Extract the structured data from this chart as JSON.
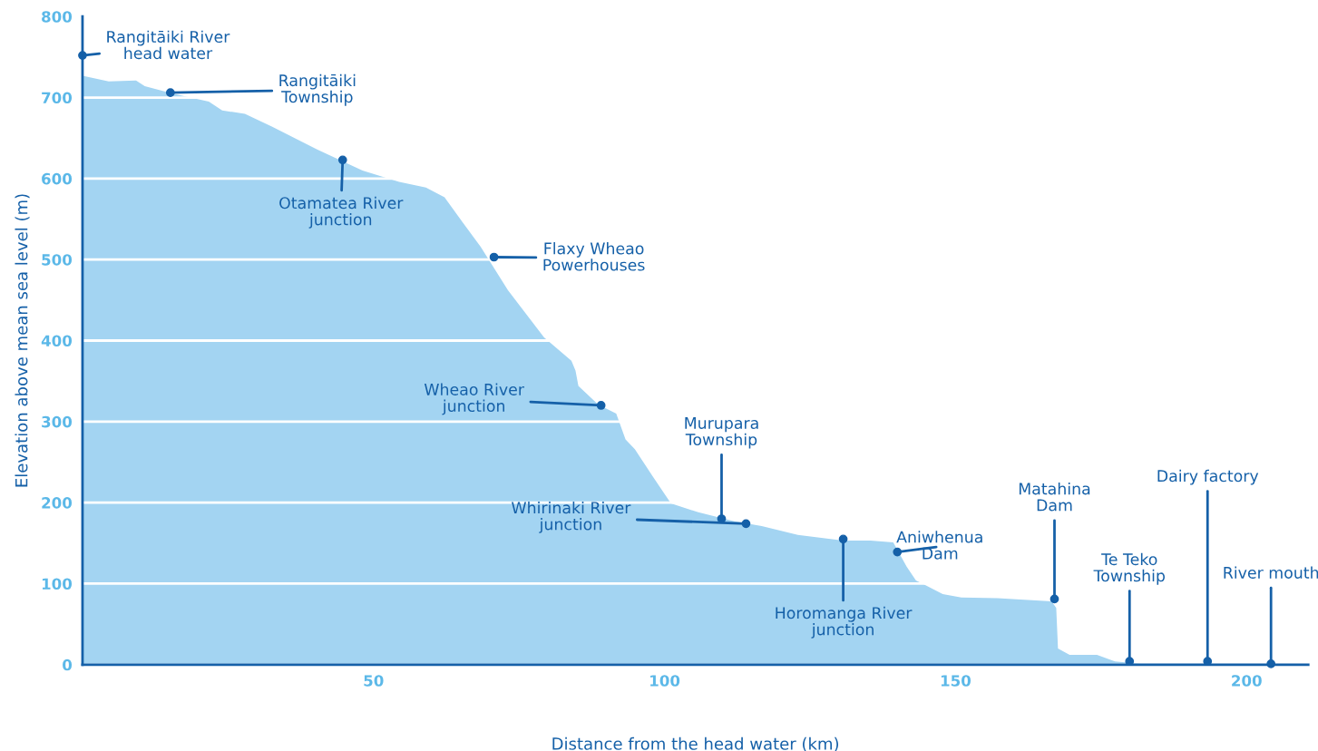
{
  "chart_data": {
    "type": "area",
    "xlabel": "Distance from the head water (km)",
    "ylabel": "Elevation above mean sea level (m)",
    "x": [
      0,
      4.5,
      9.2,
      10.7,
      15.4,
      21.7,
      24,
      27.9,
      32.6,
      40.3,
      48.1,
      54.4,
      59,
      62.2,
      65.3,
      68.4,
      73.1,
      79.3,
      84,
      84.7,
      85.2,
      88.6,
      91.7,
      93.3,
      94.9,
      98,
      101.1,
      105.8,
      112,
      116.7,
      122.9,
      130.7,
      135.4,
      139.3,
      141.6,
      143.2,
      147.8,
      151,
      157.2,
      166.5,
      167.3,
      167.6,
      169.6,
      174.3,
      177.4,
      182,
      193,
      210.6
    ],
    "series": [
      {
        "color": "#a3d4f2",
        "values": [
          727,
          720,
          721,
          714,
          705,
          695,
          684,
          680,
          664,
          636,
          610,
          596,
          589,
          577,
          546,
          516,
          462,
          404,
          375,
          363,
          344,
          321,
          310,
          278,
          266,
          232,
          199,
          188,
          177,
          171,
          160,
          153,
          153,
          151,
          121,
          104,
          87,
          83,
          82,
          78,
          70,
          20,
          12,
          12,
          4,
          1,
          0,
          0
        ]
      }
    ],
    "xlim": [
      0,
      210.6
    ],
    "ylim": [
      0,
      800
    ],
    "xticks": [
      50,
      100,
      150,
      200
    ],
    "yticks": [
      0,
      100,
      200,
      300,
      400,
      500,
      600,
      700,
      800
    ],
    "grid": "y",
    "annotations": [
      {
        "text": "Rangitāiki River\nhead water",
        "x": 0,
        "y": 752
      },
      {
        "text": "Rangitāiki\nTownship",
        "x": 15.1,
        "y": 706
      },
      {
        "text": "Otamatea River\njunction",
        "x": 44.7,
        "y": 623
      },
      {
        "text": "Flaxy Wheao\nPowerhouses",
        "x": 70.7,
        "y": 503
      },
      {
        "text": "Wheao River\njunction",
        "x": 89.1,
        "y": 320
      },
      {
        "text": "Murupara\nTownship",
        "x": 109.8,
        "y": 180
      },
      {
        "text": "Whirinaki River\njunction",
        "x": 114,
        "y": 174
      },
      {
        "text": "Horomanga River\njunction",
        "x": 130.7,
        "y": 155
      },
      {
        "text": "Aniwhenua\nDam",
        "x": 140,
        "y": 139
      },
      {
        "text": "Matahina\nDam",
        "x": 167,
        "y": 81
      },
      {
        "text": "Te Teko\nTownship",
        "x": 179.9,
        "y": 4
      },
      {
        "text": "Dairy factory",
        "x": 193.3,
        "y": 4
      },
      {
        "text": "River mouth",
        "x": 204.2,
        "y": 1
      }
    ]
  }
}
